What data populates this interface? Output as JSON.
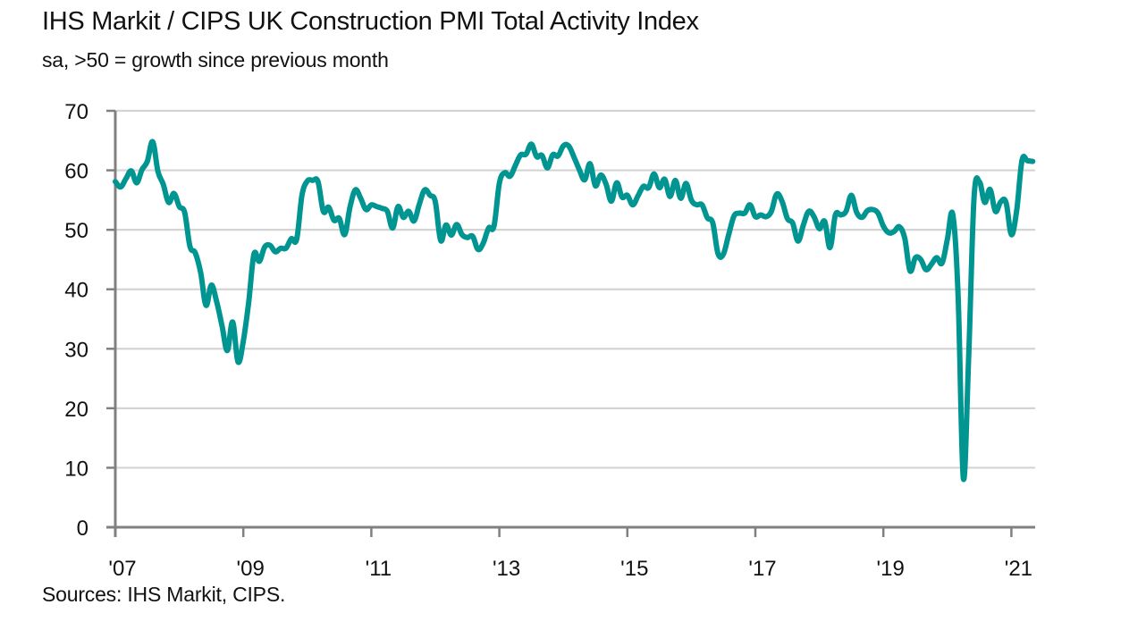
{
  "title": "IHS Markit / CIPS UK Construction PMI Total Activity Index",
  "subtitle": "sa, >50 = growth since previous month",
  "source": "Sources: IHS Markit, CIPS.",
  "colors": {
    "line": "#009591",
    "axis": "#808080",
    "grid": "#d4d4d4",
    "text": "#111111"
  },
  "chart_data": {
    "type": "line",
    "title": "IHS Markit / CIPS UK Construction PMI Total Activity Index",
    "subtitle": "sa, >50 = growth since previous month",
    "xlabel": "",
    "ylabel": "",
    "ylim": [
      0,
      70
    ],
    "yticks": [
      0,
      10,
      20,
      30,
      40,
      50,
      60,
      70
    ],
    "ytick_labels": [
      "0",
      "10",
      "20",
      "30",
      "40",
      "50",
      "60",
      "70"
    ],
    "xlim": [
      "2007-01",
      "2021-05"
    ],
    "xticks": [
      "2007-01",
      "2009-01",
      "2011-01",
      "2013-01",
      "2015-01",
      "2017-01",
      "2019-01",
      "2021-01"
    ],
    "xtick_labels": [
      "'07",
      "'09",
      "'11",
      "'13",
      "'15",
      "'17",
      "'19",
      "'21"
    ],
    "grid": true,
    "legend": "none",
    "frequency": "monthly",
    "start": "2007-01",
    "series": [
      {
        "name": "UK Construction PMI Total Activity Index",
        "values": [
          58.1,
          57.2,
          58.6,
          59.9,
          57.9,
          60.1,
          61.5,
          64.8,
          59.8,
          57.6,
          54.6,
          56.1,
          53.9,
          52.9,
          47.2,
          46.1,
          42.8,
          37.3,
          40.7,
          37.9,
          33.9,
          29.7,
          34.5,
          27.8,
          31.3,
          37.8,
          45.9,
          44.7,
          47.1,
          47.4,
          46.3,
          46.9,
          46.9,
          48.5,
          48.4,
          55.8,
          58.2,
          58.3,
          58.1,
          53.1,
          53.8,
          51.6,
          51.9,
          49.2,
          53.8,
          56.7,
          55.3,
          53.4,
          54.2,
          53.9,
          53.6,
          53.1,
          50.3,
          53.9,
          52.1,
          53.1,
          51.5,
          54.3,
          56.7,
          55.8,
          54.7,
          48.2,
          50.8,
          49.1,
          50.9,
          49.2,
          48.7,
          48.9,
          46.7,
          47.8,
          50.3,
          50.6,
          57.8,
          59.6,
          59.0,
          60.8,
          62.6,
          62.7,
          64.4,
          62.3,
          62.5,
          60.4,
          62.6,
          62.4,
          64.1,
          64.1,
          62.2,
          60.1,
          58.4,
          61.1,
          57.4,
          59.2,
          57.7,
          54.8,
          57.9,
          55.5,
          55.8,
          54.2,
          55.7,
          57.3,
          57.1,
          59.4,
          57.1,
          58.5,
          55.6,
          58.3,
          55.3,
          57.8,
          55.0,
          54.2,
          54.2,
          52.0,
          51.2,
          46.0,
          45.9,
          49.2,
          52.3,
          52.8,
          52.8,
          54.2,
          52.2,
          52.5,
          52.2,
          53.1,
          56.0,
          54.8,
          51.9,
          51.1,
          48.1,
          50.8,
          53.1,
          52.2,
          50.2,
          51.4,
          47.0,
          52.5,
          52.5,
          53.1,
          55.8,
          52.9,
          52.1,
          53.2,
          53.4,
          52.8,
          50.6,
          49.5,
          49.7,
          50.5,
          48.6,
          43.1,
          45.3,
          45.0,
          43.3,
          44.2,
          45.3,
          44.4,
          48.4,
          52.6,
          39.3,
          8.2,
          28.9,
          55.3,
          58.1,
          54.6,
          56.8,
          53.1,
          54.7,
          54.6,
          49.2,
          53.3,
          61.7,
          61.6,
          61.5
        ]
      }
    ]
  }
}
